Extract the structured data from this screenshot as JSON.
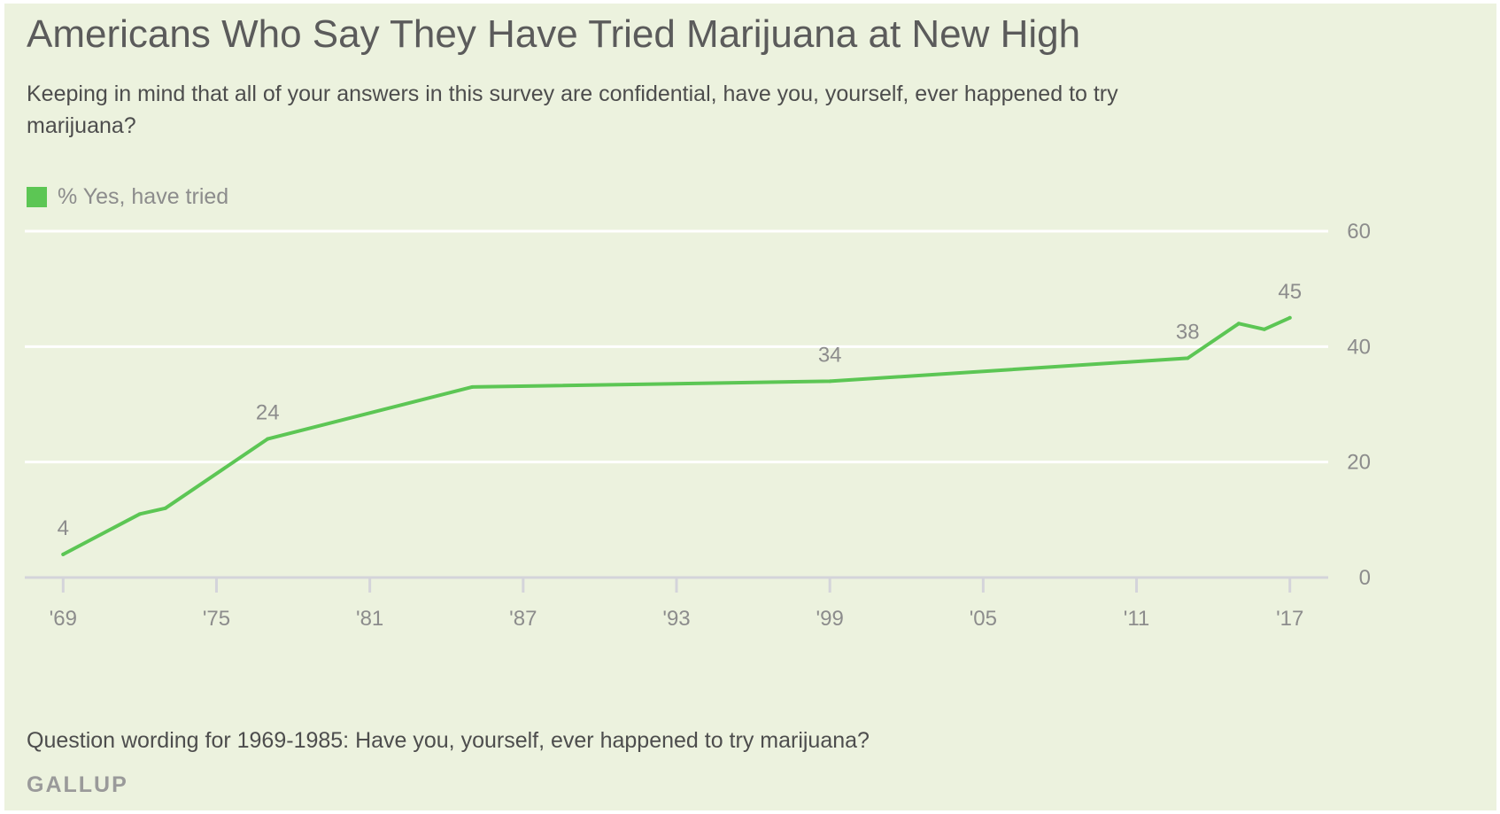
{
  "title": "Americans Who Say They Have Tried Marijuana at New High",
  "subtitle": "Keeping in mind that all of your answers in this survey are confidential, have you, yourself, ever happened to try marijuana?",
  "footnote": "Question wording for 1969-1985: Have you, yourself, ever happened to try marijuana?",
  "source": "GALLUP",
  "colors": {
    "background": "#ecf2de",
    "line": "#5cc654",
    "gridline": "#ffffff",
    "axis": "#d4d4da",
    "text_muted": "#8c8c8c"
  },
  "chart_data": {
    "type": "line",
    "title": "Americans Who Say They Have Tried Marijuana at New High",
    "xlabel": "",
    "ylabel": "",
    "xlim": [
      1967.5,
      2018.5
    ],
    "ylim": [
      0,
      60
    ],
    "grid": true,
    "y_axis_side": "right",
    "legend_position": "top-left",
    "x_ticks": [
      1969,
      1975,
      1981,
      1987,
      1993,
      1999,
      2005,
      2011,
      2017
    ],
    "x_tick_labels": [
      "'69",
      "'75",
      "'81",
      "'87",
      "'93",
      "'99",
      "'05",
      "'11",
      "'17"
    ],
    "y_ticks": [
      0,
      20,
      40,
      60
    ],
    "y_tick_labels": [
      "0",
      "20",
      "40",
      "60"
    ],
    "series": [
      {
        "name": "% Yes, have tried",
        "color": "#5cc654",
        "x": [
          1969,
          1972,
          1973,
          1977,
          1985,
          1999,
          2013,
          2015,
          2016,
          2017
        ],
        "y": [
          4,
          11,
          12,
          24,
          33,
          34,
          38,
          44,
          43,
          45
        ]
      }
    ],
    "data_labels": [
      {
        "x": 1969,
        "y": 4,
        "text": "4"
      },
      {
        "x": 1977,
        "y": 24,
        "text": "24"
      },
      {
        "x": 1999,
        "y": 34,
        "text": "34"
      },
      {
        "x": 2013,
        "y": 38,
        "text": "38"
      },
      {
        "x": 2017,
        "y": 45,
        "text": "45"
      }
    ]
  }
}
